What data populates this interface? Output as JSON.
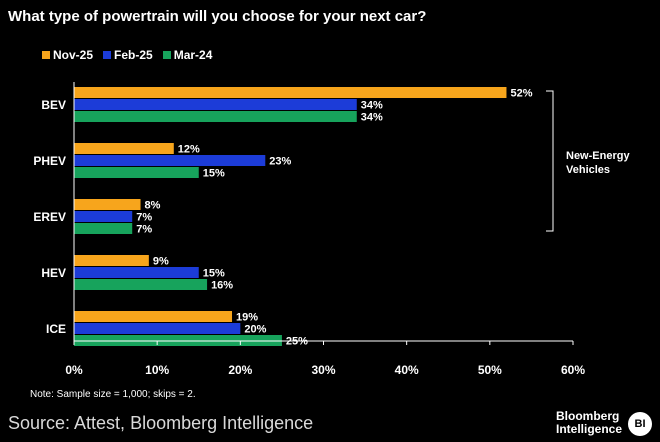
{
  "title": "What type of powertrain will you choose for your next car?",
  "note": "Note: Sample size = 1,000; skips = 2.",
  "source": "Source: Attest, Bloomberg Intelligence",
  "brand": {
    "line1": "Bloomberg",
    "line2": "Intelligence",
    "logo": "BI"
  },
  "colors": {
    "Nov-25": "#f7a51c",
    "Feb-25": "#1c3cd8",
    "Mar-24": "#17a35c"
  },
  "chart_data": {
    "type": "bar",
    "orientation": "horizontal",
    "categories": [
      "BEV",
      "PHEV",
      "EREV",
      "HEV",
      "ICE"
    ],
    "series": [
      {
        "name": "Nov-25",
        "values": [
          52,
          12,
          8,
          9,
          19
        ]
      },
      {
        "name": "Feb-25",
        "values": [
          34,
          23,
          7,
          15,
          20
        ]
      },
      {
        "name": "Mar-24",
        "values": [
          34,
          15,
          7,
          16,
          25
        ]
      }
    ],
    "xlim": [
      0,
      60
    ],
    "xticks": [
      "0%",
      "10%",
      "20%",
      "30%",
      "40%",
      "50%",
      "60%"
    ],
    "value_suffix": "%",
    "legend_position": "top-left",
    "grid": false,
    "annotation": {
      "text": [
        "New-Energy",
        "Vehicles"
      ],
      "spans": [
        "BEV",
        "PHEV",
        "EREV"
      ]
    }
  }
}
